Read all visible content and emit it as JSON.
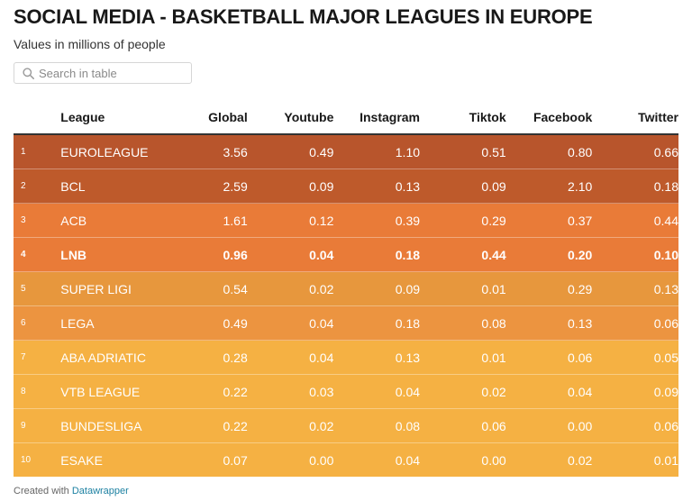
{
  "title": "SOCIAL MEDIA - BASKETBALL MAJOR LEAGUES IN EUROPE",
  "subtitle": "Values in millions of people",
  "search": {
    "placeholder": "Search in table",
    "icon": "search-icon"
  },
  "footer": {
    "prefix": "Created with",
    "link": "Datawrapper"
  },
  "chart_data": {
    "type": "table",
    "columns": [
      "",
      "League",
      "Global",
      "Youtube",
      "Instagram",
      "Tiktok",
      "Facebook",
      "Twitter"
    ],
    "rows": [
      {
        "rank": "1",
        "league": "EUROLEAGUE",
        "values": [
          "3.56",
          "0.49",
          "1.10",
          "0.51",
          "0.80",
          "0.66"
        ],
        "color": "#b8552c",
        "bold": false
      },
      {
        "rank": "2",
        "league": "BCL",
        "values": [
          "2.59",
          "0.09",
          "0.13",
          "0.09",
          "2.10",
          "0.18"
        ],
        "color": "#be5a2b",
        "bold": false
      },
      {
        "rank": "3",
        "league": "ACB",
        "values": [
          "1.61",
          "0.12",
          "0.39",
          "0.29",
          "0.37",
          "0.44"
        ],
        "color": "#e97b38",
        "bold": false
      },
      {
        "rank": "4",
        "league": "LNB",
        "values": [
          "0.96",
          "0.04",
          "0.18",
          "0.44",
          "0.20",
          "0.10"
        ],
        "color": "#e97b38",
        "bold": true
      },
      {
        "rank": "5",
        "league": "SUPER LIGI",
        "values": [
          "0.54",
          "0.02",
          "0.09",
          "0.01",
          "0.29",
          "0.13"
        ],
        "color": "#e7973d",
        "bold": false
      },
      {
        "rank": "6",
        "league": "LEGA",
        "values": [
          "0.49",
          "0.04",
          "0.18",
          "0.08",
          "0.13",
          "0.06"
        ],
        "color": "#ec9440",
        "bold": false
      },
      {
        "rank": "7",
        "league": "ABA ADRIATIC",
        "values": [
          "0.28",
          "0.04",
          "0.13",
          "0.01",
          "0.06",
          "0.05"
        ],
        "color": "#f5b143",
        "bold": false
      },
      {
        "rank": "8",
        "league": "VTB LEAGUE",
        "values": [
          "0.22",
          "0.03",
          "0.04",
          "0.02",
          "0.04",
          "0.09"
        ],
        "color": "#f5b143",
        "bold": false
      },
      {
        "rank": "9",
        "league": "BUNDESLIGA",
        "values": [
          "0.22",
          "0.02",
          "0.08",
          "0.06",
          "0.00",
          "0.06"
        ],
        "color": "#f5b143",
        "bold": false
      },
      {
        "rank": "10",
        "league": "ESAKE",
        "values": [
          "0.07",
          "0.00",
          "0.04",
          "0.00",
          "0.02",
          "0.01"
        ],
        "color": "#f5b143",
        "bold": false
      }
    ]
  }
}
